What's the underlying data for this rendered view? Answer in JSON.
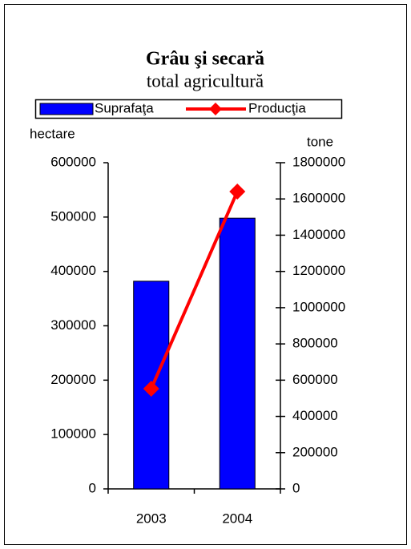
{
  "chart_data": {
    "type": "bar",
    "title": "Grâu şi secară",
    "subtitle": "total agricultură",
    "ylabel": "hectare",
    "y2label": "tone",
    "categories": [
      "2003",
      "2004"
    ],
    "series": [
      {
        "name": "Suprafaţa",
        "color": "#0000ff",
        "type": "bar",
        "values": [
          382000,
          498000
        ]
      },
      {
        "name": "Producţia",
        "color": "#ff0000",
        "type": "line",
        "axis": "y2",
        "values": [
          553000,
          1641000
        ]
      }
    ],
    "ylim": [
      0,
      600000
    ],
    "yticks": [
      0,
      100000,
      200000,
      300000,
      400000,
      500000,
      600000
    ],
    "y2lim": [
      0,
      1800000
    ],
    "y2ticks": [
      0,
      200000,
      400000,
      600000,
      800000,
      1000000,
      1200000,
      1400000,
      1600000,
      1800000
    ],
    "legend": "top"
  }
}
